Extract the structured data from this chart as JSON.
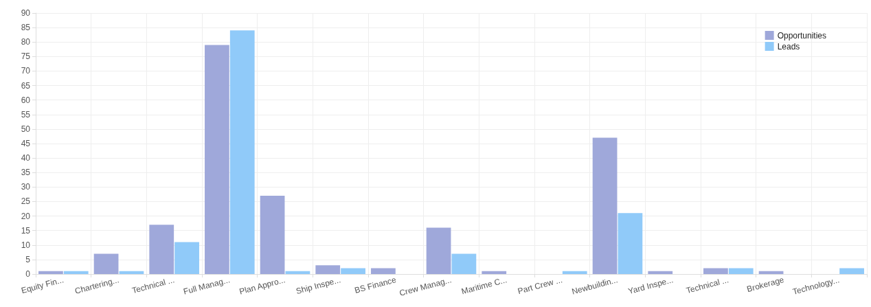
{
  "chart_data": {
    "type": "bar",
    "categories": [
      "Equity Fin...",
      "Chartering...",
      "Technical ...",
      "Full Manag...",
      "Plan Appro...",
      "Ship Inspe...",
      "BS Finance",
      "Crew Manag...",
      "Maritime C...",
      "Part Crew ...",
      "Newbuildin...",
      "Yard Inspe...",
      "Technical ...",
      "Brokerage",
      "Technology..."
    ],
    "series": [
      {
        "name": "Opportunities",
        "color": "#9fa8da",
        "values": [
          1,
          7,
          17,
          79,
          27,
          3,
          2,
          16,
          1,
          0,
          47,
          1,
          2,
          1,
          0
        ]
      },
      {
        "name": "Leads",
        "color": "#90caf9",
        "values": [
          1,
          1,
          11,
          84,
          1,
          2,
          0,
          7,
          0,
          1,
          21,
          0,
          2,
          0,
          2
        ]
      }
    ],
    "ylim": [
      0,
      90
    ],
    "yticks": [
      0,
      5,
      10,
      15,
      20,
      25,
      30,
      35,
      40,
      45,
      50,
      55,
      60,
      65,
      70,
      75,
      80,
      85,
      90
    ],
    "grid": true,
    "legend": "top right"
  }
}
